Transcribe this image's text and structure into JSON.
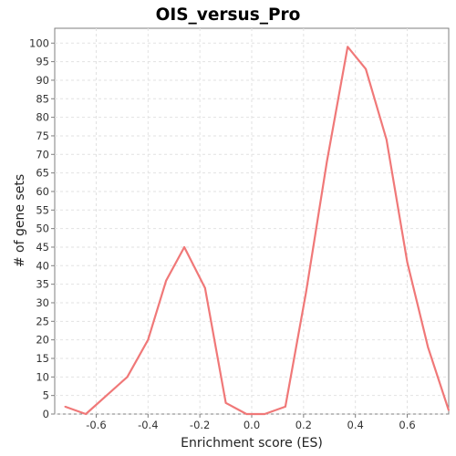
{
  "chart_data": {
    "type": "line",
    "title": "OIS_versus_Pro",
    "xlabel": "Enrichment score (ES)",
    "ylabel": "# of gene sets",
    "xlim": [
      -0.76,
      0.76
    ],
    "ylim": [
      0,
      104
    ],
    "x_ticks": [
      -0.6,
      -0.4,
      -0.2,
      0.0,
      0.2,
      0.4,
      0.6
    ],
    "x_tick_labels": [
      "-0.6",
      "-0.4",
      "-0.2",
      "0.0",
      "0.2",
      "0.4",
      "0.6"
    ],
    "y_ticks": [
      0,
      5,
      10,
      15,
      20,
      25,
      30,
      35,
      40,
      45,
      50,
      55,
      60,
      65,
      70,
      75,
      80,
      85,
      90,
      95,
      100
    ],
    "grid": true,
    "series": [
      {
        "color": "#f07878",
        "x": [
          -0.72,
          -0.64,
          -0.56,
          -0.48,
          -0.4,
          -0.33,
          -0.26,
          -0.18,
          -0.1,
          -0.02,
          0.05,
          0.13,
          0.21,
          0.29,
          0.37,
          0.44,
          0.52,
          0.6,
          0.68,
          0.76
        ],
        "y": [
          2,
          0,
          5,
          10,
          20,
          36,
          45,
          34,
          3,
          0,
          0,
          2,
          33,
          68,
          99,
          93,
          74,
          41,
          18,
          1
        ]
      }
    ]
  }
}
